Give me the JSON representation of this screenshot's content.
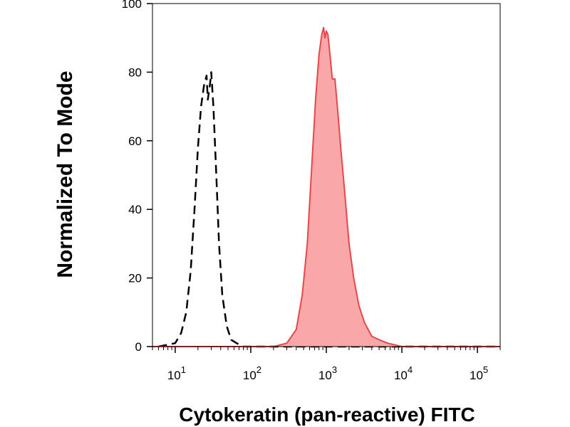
{
  "chart_data": {
    "type": "area",
    "title": "",
    "xlabel": "Cytokeratin (pan-reactive) FITC",
    "ylabel": "Normalized To Mode",
    "x_scale": "log",
    "xlim": [
      5,
      200000
    ],
    "ylim": [
      0,
      100
    ],
    "grid": false,
    "legend": "none",
    "y_ticks": [
      {
        "value": 0,
        "label": "0"
      },
      {
        "value": 20,
        "label": "20"
      },
      {
        "value": 40,
        "label": "40"
      },
      {
        "value": 60,
        "label": "60"
      },
      {
        "value": 80,
        "label": "80"
      },
      {
        "value": 100,
        "label": "100"
      }
    ],
    "x_ticks": [
      {
        "value": 10,
        "base": "10",
        "exp": "1"
      },
      {
        "value": 100,
        "base": "10",
        "exp": "2"
      },
      {
        "value": 1000,
        "base": "10",
        "exp": "3"
      },
      {
        "value": 10000,
        "base": "10",
        "exp": "4"
      },
      {
        "value": 100000,
        "base": "10",
        "exp": "5"
      }
    ],
    "series": [
      {
        "style": "dashed-outline",
        "color": "#000000",
        "points": [
          [
            6,
            0
          ],
          [
            10,
            1
          ],
          [
            12,
            4
          ],
          [
            14,
            10
          ],
          [
            16,
            22
          ],
          [
            18,
            40
          ],
          [
            20,
            58
          ],
          [
            22,
            70
          ],
          [
            24,
            76
          ],
          [
            26,
            79
          ],
          [
            27,
            72
          ],
          [
            29,
            77
          ],
          [
            30,
            80
          ],
          [
            32,
            70
          ],
          [
            35,
            50
          ],
          [
            38,
            30
          ],
          [
            42,
            15
          ],
          [
            48,
            6
          ],
          [
            55,
            2
          ],
          [
            65,
            1
          ],
          [
            80,
            0
          ],
          [
            200000,
            0
          ]
        ]
      },
      {
        "style": "filled",
        "color": "#e8474a",
        "fill": "#f9a7a9",
        "points": [
          [
            5,
            0
          ],
          [
            200,
            0
          ],
          [
            300,
            1
          ],
          [
            400,
            5
          ],
          [
            480,
            15
          ],
          [
            560,
            30
          ],
          [
            640,
            52
          ],
          [
            720,
            72
          ],
          [
            800,
            85
          ],
          [
            870,
            91
          ],
          [
            920,
            93
          ],
          [
            960,
            90
          ],
          [
            1000,
            92
          ],
          [
            1050,
            91
          ],
          [
            1120,
            85
          ],
          [
            1200,
            78
          ],
          [
            1300,
            78
          ],
          [
            1400,
            70
          ],
          [
            1550,
            58
          ],
          [
            1750,
            45
          ],
          [
            2000,
            30
          ],
          [
            2300,
            20
          ],
          [
            2700,
            12
          ],
          [
            3200,
            7
          ],
          [
            4000,
            3
          ],
          [
            5000,
            2
          ],
          [
            6500,
            1
          ],
          [
            10000,
            0
          ],
          [
            200000,
            0
          ]
        ]
      }
    ]
  }
}
